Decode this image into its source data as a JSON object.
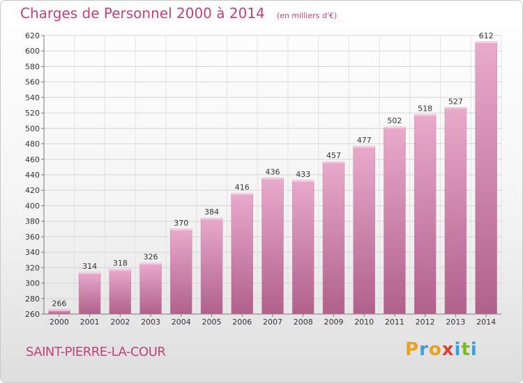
{
  "header": {
    "title": "Charges de Personnel 2000 à 2014",
    "unit": "(en milliers d'€)"
  },
  "footer": {
    "commune": "SAINT-PIERRE-LA-COUR",
    "logo": "Proxiti"
  },
  "colors": {
    "accent": "#c0407a",
    "bar_top": "#e9aacb",
    "bar_bottom": "#b0608c",
    "logo_letters": [
      "#e8a020",
      "#3aa0d8",
      "#e8a020",
      "#d8403a",
      "#3aa0d8",
      "#7ab830",
      "#3aa0d8"
    ]
  },
  "chart_data": {
    "type": "bar",
    "title": "Charges de Personnel 2000 à 2014",
    "categories": [
      "2000",
      "2001",
      "2002",
      "2003",
      "2004",
      "2005",
      "2006",
      "2007",
      "2008",
      "2009",
      "2010",
      "2011",
      "2012",
      "2013",
      "2014"
    ],
    "values": [
      266,
      314,
      318,
      326,
      370,
      384,
      416,
      436,
      433,
      457,
      477,
      502,
      518,
      527,
      612
    ],
    "data_labels": [
      "266",
      "314",
      "318",
      "326",
      "370",
      "384",
      "416",
      "436",
      "433",
      "457",
      "477",
      "502",
      "518",
      "527",
      "612"
    ],
    "ylim": [
      260,
      620
    ],
    "yticks": [
      260,
      280,
      300,
      320,
      340,
      360,
      380,
      400,
      420,
      440,
      460,
      480,
      500,
      520,
      540,
      560,
      580,
      600,
      620
    ],
    "grid": true,
    "legend": "none"
  }
}
